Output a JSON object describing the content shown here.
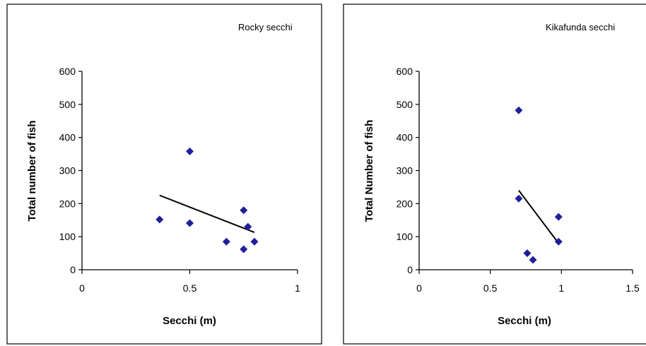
{
  "chart_data": [
    {
      "type": "scatter",
      "title": "Rocky secchi",
      "xlabel": "Secchi (m)",
      "ylabel": "Total number of fish",
      "xlim": [
        0,
        1
      ],
      "ylim": [
        0,
        600
      ],
      "xticks": [
        "0",
        "0.5",
        "1"
      ],
      "yticks": [
        "0",
        "100",
        "200",
        "300",
        "400",
        "500",
        "600"
      ],
      "grid": false,
      "marker_color": "#1f1f99",
      "points": [
        {
          "x": 0.36,
          "y": 152
        },
        {
          "x": 0.5,
          "y": 358
        },
        {
          "x": 0.5,
          "y": 141
        },
        {
          "x": 0.67,
          "y": 85
        },
        {
          "x": 0.75,
          "y": 180
        },
        {
          "x": 0.75,
          "y": 62
        },
        {
          "x": 0.77,
          "y": 130
        },
        {
          "x": 0.8,
          "y": 85
        }
      ],
      "trendline": {
        "x": [
          0.36,
          0.8
        ],
        "y": [
          225,
          113
        ]
      }
    },
    {
      "type": "scatter",
      "title": "Kikafunda secchi",
      "xlabel": "Secchi (m)",
      "ylabel": "Total Number of fish",
      "xlim": [
        0,
        1.5
      ],
      "ylim": [
        0,
        600
      ],
      "xticks": [
        "0",
        "0.5",
        "1",
        "1.5"
      ],
      "yticks": [
        "0",
        "100",
        "200",
        "300",
        "400",
        "500",
        "600"
      ],
      "grid": false,
      "marker_color": "#1f1f99",
      "points": [
        {
          "x": 0.7,
          "y": 482
        },
        {
          "x": 0.7,
          "y": 215
        },
        {
          "x": 0.76,
          "y": 50
        },
        {
          "x": 0.8,
          "y": 30
        },
        {
          "x": 0.98,
          "y": 160
        },
        {
          "x": 0.98,
          "y": 85
        }
      ],
      "trendline": {
        "x": [
          0.7,
          0.98
        ],
        "y": [
          240,
          80
        ]
      }
    }
  ]
}
